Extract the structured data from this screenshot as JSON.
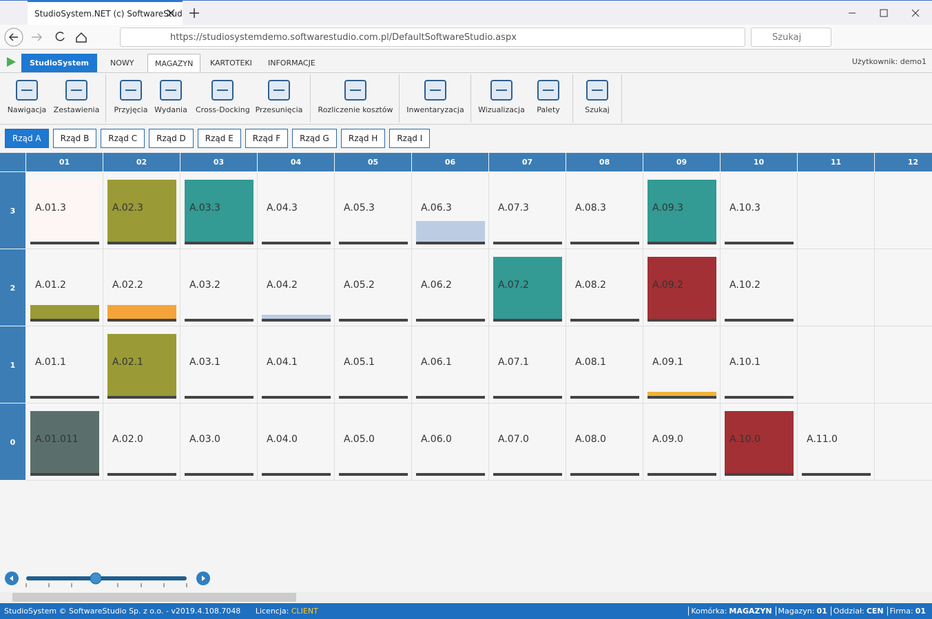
{
  "browser": {
    "tab_title": "StudioSystem.NET (c) SoftwareStud",
    "url": "https://studiosystemdemo.softwarestudio.com.pl/DefaultSoftwareStudio.aspx",
    "search": "Szukaj"
  },
  "app": {
    "tabs": [
      "StudioSystem",
      "NOWY",
      "MAGAZYN",
      "KARTOTEKI",
      "INFORMACJE"
    ],
    "active_tab": 2,
    "user": "Użytkownik: demo1"
  },
  "toolbar": [
    "Nawigacja",
    "Zestawienia",
    "Przyjęcia",
    "Wydania",
    "Cross-Docking",
    "Przesunięcia",
    "Rozliczenie kosztów",
    "Inwentaryzacja",
    "Wizualizacja",
    "Palety",
    "Szukaj"
  ],
  "rows": {
    "items": [
      "Rząd A",
      "Rząd B",
      "Rząd C",
      "Rząd D",
      "Rząd E",
      "Rząd F",
      "Rząd G",
      "Rząd H",
      "Rząd I"
    ],
    "active": 0
  },
  "grid": {
    "columns": [
      "01",
      "02",
      "03",
      "04",
      "05",
      "06",
      "07",
      "08",
      "09",
      "10",
      "11",
      "12"
    ],
    "levels": [
      "3",
      "2",
      "1",
      "0"
    ],
    "cells": [
      [
        {
          "label": "A.01.3",
          "color": "#fdf6f4",
          "fill": "full"
        },
        {
          "label": "A.02.3",
          "color": "#9a9a36",
          "fill": "full"
        },
        {
          "label": "A.03.3",
          "color": "#339a94",
          "fill": "full"
        },
        {
          "label": "A.04.3"
        },
        {
          "label": "A.05.3"
        },
        {
          "label": "A.06.3",
          "color": "#bccde3",
          "fill": "third"
        },
        {
          "label": "A.07.3"
        },
        {
          "label": "A.08.3"
        },
        {
          "label": "A.09.3",
          "color": "#339a94",
          "fill": "full"
        },
        {
          "label": "A.10.3"
        },
        null,
        null
      ],
      [
        {
          "label": "A.01.2",
          "color": "#9a9a36",
          "fill": "strip"
        },
        {
          "label": "A.02.2",
          "color": "#f5a43a",
          "fill": "strip"
        },
        {
          "label": "A.03.2"
        },
        {
          "label": "A.04.2",
          "color": "#bccde3",
          "fill": "line"
        },
        {
          "label": "A.05.2"
        },
        {
          "label": "A.06.2"
        },
        {
          "label": "A.07.2",
          "color": "#339a94",
          "fill": "full"
        },
        {
          "label": "A.08.2"
        },
        {
          "label": "A.09.2",
          "color": "#a33034",
          "fill": "full"
        },
        {
          "label": "A.10.2"
        },
        null,
        null
      ],
      [
        {
          "label": "A.01.1"
        },
        {
          "label": "A.02.1",
          "color": "#9a9a36",
          "fill": "full"
        },
        {
          "label": "A.03.1"
        },
        {
          "label": "A.04.1"
        },
        {
          "label": "A.05.1"
        },
        {
          "label": "A.06.1"
        },
        {
          "label": "A.07.1"
        },
        {
          "label": "A.08.1"
        },
        {
          "label": "A.09.1",
          "color": "#f0b43a",
          "fill": "line"
        },
        {
          "label": "A.10.1"
        },
        null,
        null
      ],
      [
        {
          "label": "A.01.011",
          "color": "#5a6f6c",
          "fill": "full"
        },
        {
          "label": "A.02.0"
        },
        {
          "label": "A.03.0"
        },
        {
          "label": "A.04.0"
        },
        {
          "label": "A.05.0"
        },
        {
          "label": "A.06.0"
        },
        {
          "label": "A.07.0"
        },
        {
          "label": "A.08.0"
        },
        {
          "label": "A.09.0"
        },
        {
          "label": "A.10.0",
          "color": "#a33034",
          "fill": "full"
        },
        {
          "label": "A.11.0"
        },
        null
      ]
    ]
  },
  "status": {
    "left": "StudioSystem © SoftwareStudio Sp. z o.o. - v2019.4.108.7048",
    "license_label": "Licencja:",
    "license": "CLIENT",
    "fields": [
      {
        "label": "Komórka:",
        "value": "MAGAZYN"
      },
      {
        "label": "Magazyn:",
        "value": "01"
      },
      {
        "label": "Oddział:",
        "value": "CEN"
      },
      {
        "label": "Firma:",
        "value": "01"
      }
    ]
  }
}
